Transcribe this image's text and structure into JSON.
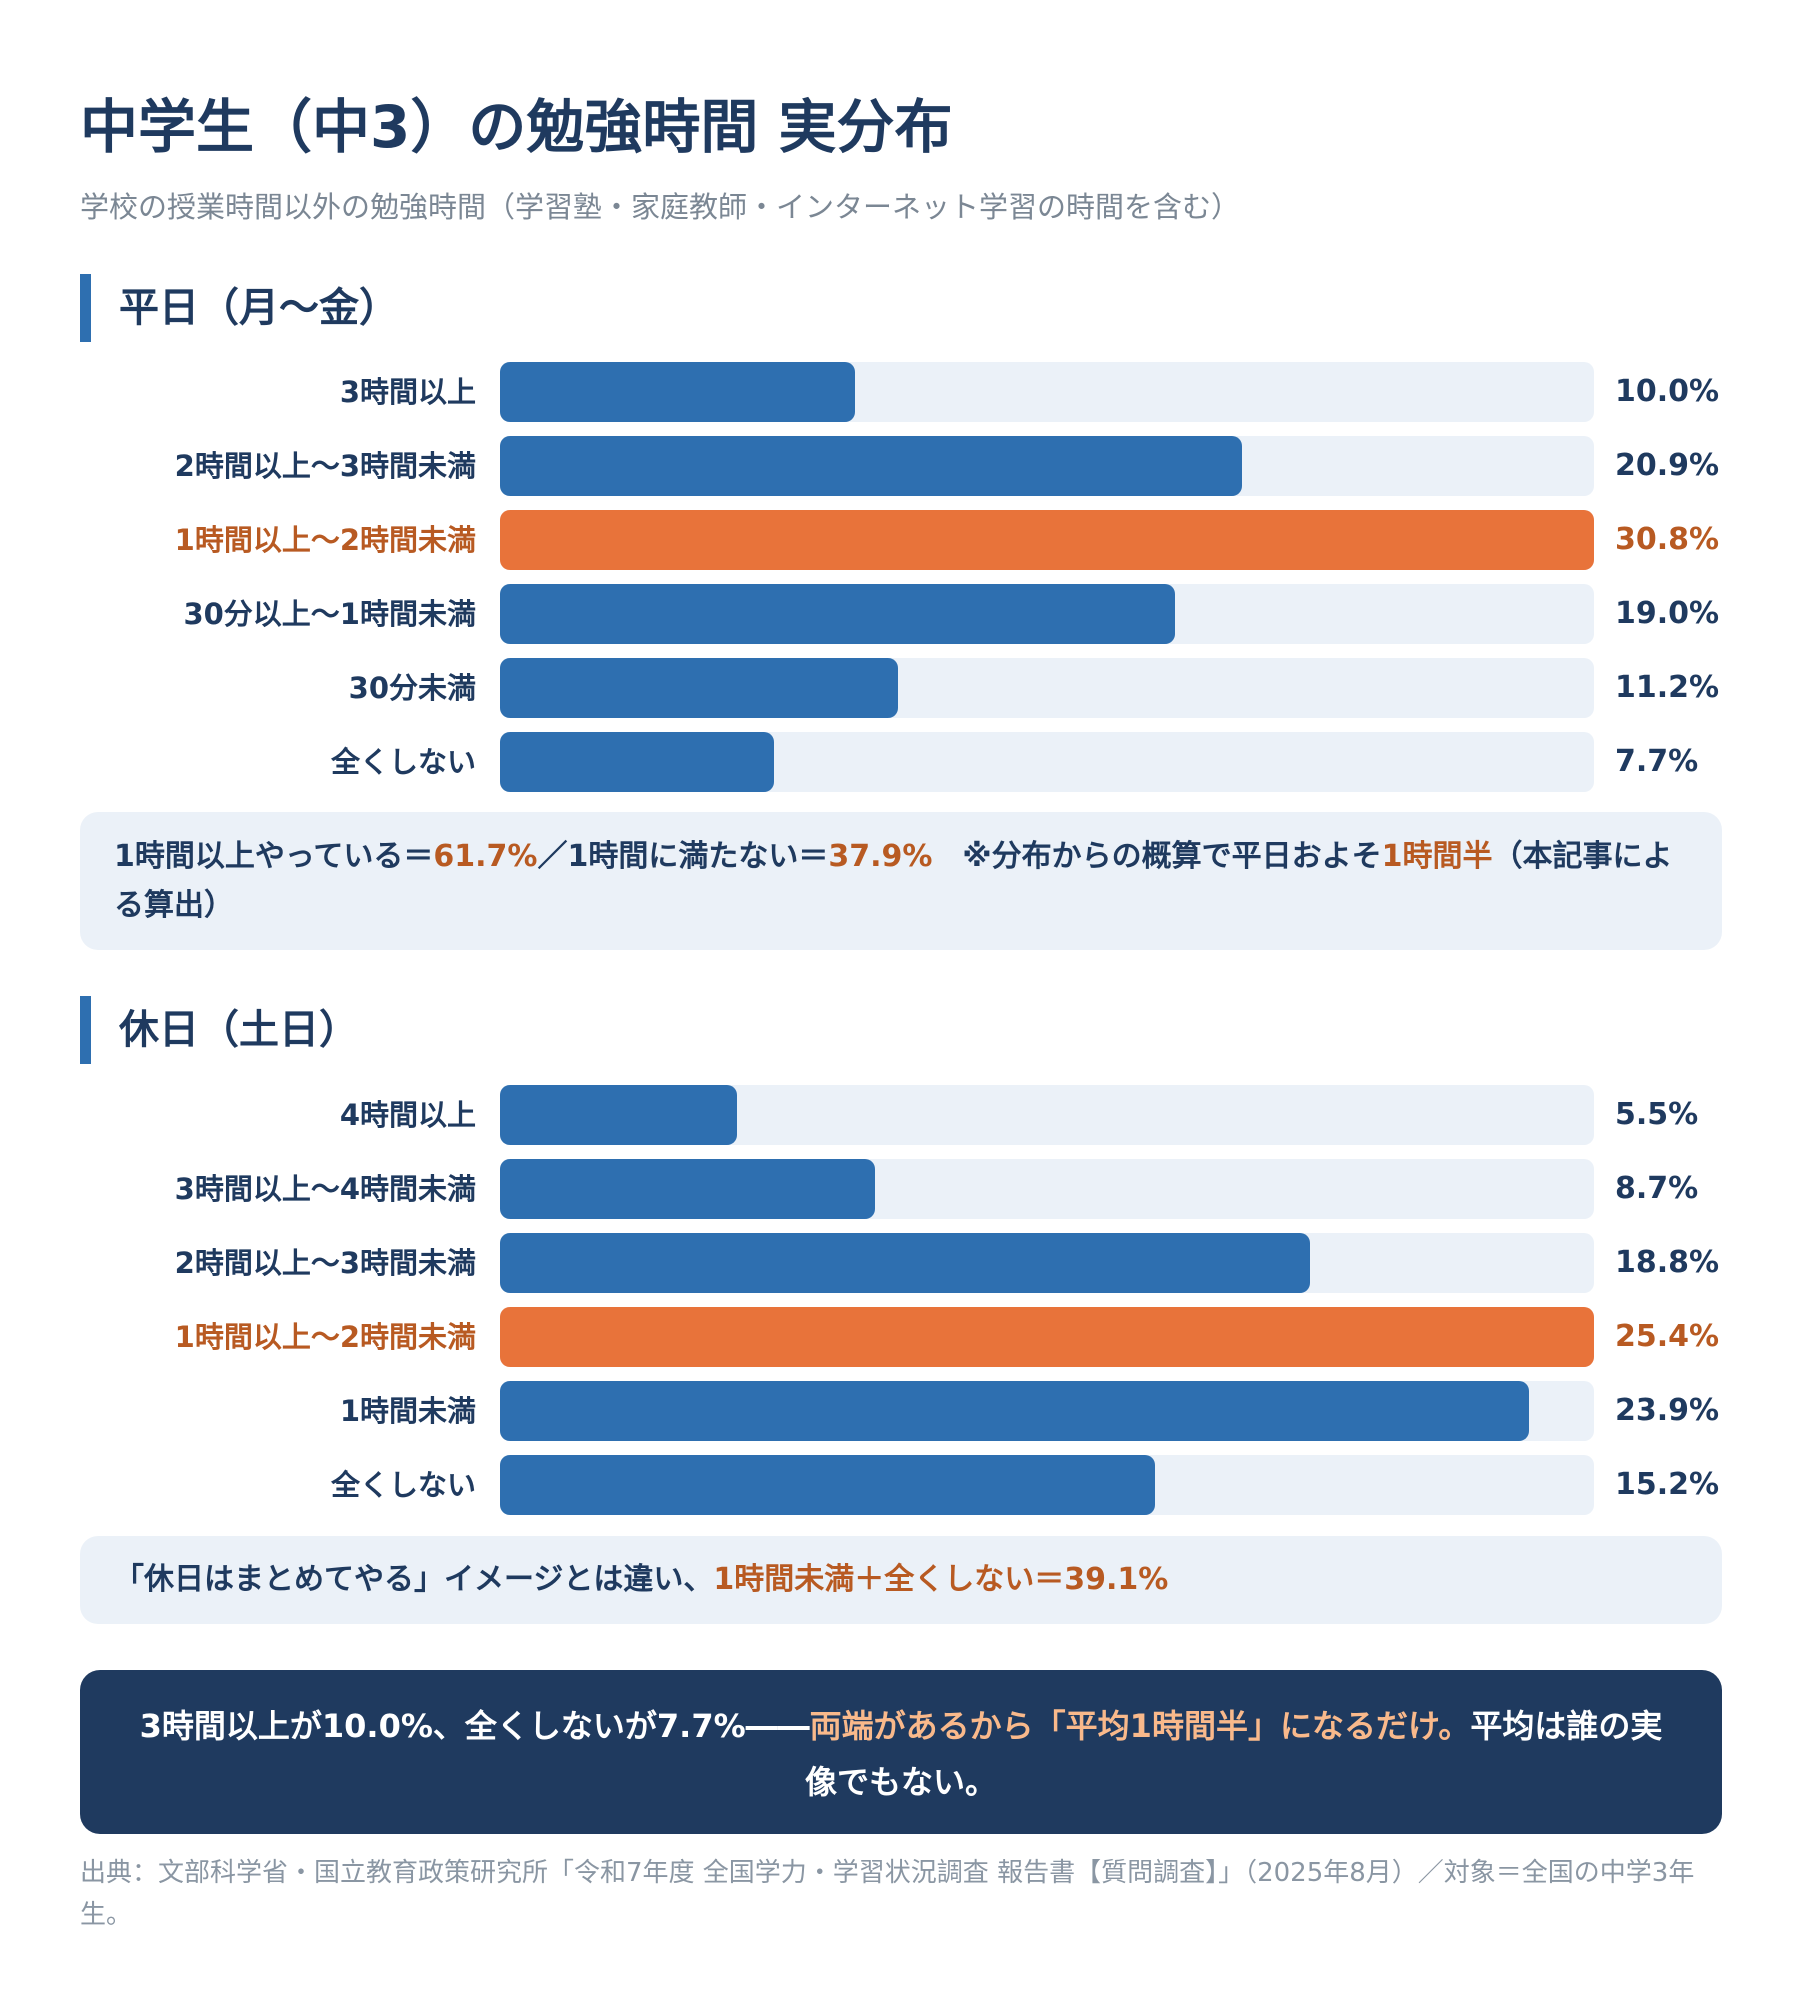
{
  "title": "中学生（中3）の勉強時間 実分布",
  "subtitle": "学校の授業時間以外の勉強時間（学習塾・家庭教師・インターネット学習の時間を含む）",
  "weekday": {
    "heading": "平日（月〜金）",
    "note": {
      "part1": "1時間以上やっている＝",
      "val1": "61.7%",
      "part2": "／1時間に満たない＝",
      "val2": "37.9%",
      "part3": "　※分布からの概算で平日およそ",
      "val3": "1時間半",
      "part4": "（本記事による算出）"
    }
  },
  "holiday": {
    "heading": "休日（土日）",
    "note": {
      "part1": "「休日はまとめてやる」イメージとは違い、",
      "val1": "1時間未満＋全くしない＝39.1%"
    }
  },
  "callout": {
    "part1": "3時間以上が10.0%、全くしないが7.7%――",
    "accent": "両端があるから「平均1時間半」になるだけ。",
    "part2": "平均は誰の実像でもない。"
  },
  "source": "出典：文部科学省・国立教育政策研究所「令和7年度 全国学力・学習状況調査 報告書【質問調査】」（2025年8月）／対象＝全国の中学3年生。",
  "colors": {
    "bar": "#2e6fb0",
    "highlight": "#e8733a",
    "track": "#ebf1f8",
    "navy": "#1f3a5f",
    "accent_text": "#b85a22"
  },
  "chart_data": [
    {
      "type": "bar",
      "orientation": "horizontal",
      "title": "平日（月〜金）",
      "categories": [
        "3時間以上",
        "2時間以上〜3時間未満",
        "1時間以上〜2時間未満",
        "30分以上〜1時間未満",
        "30分未満",
        "全くしない"
      ],
      "values": [
        10.0,
        20.9,
        30.8,
        19.0,
        11.2,
        7.7
      ],
      "value_labels": [
        "10.0%",
        "20.9%",
        "30.8%",
        "19.0%",
        "11.2%",
        "7.7%"
      ],
      "highlight_index": 2,
      "xlim": [
        0,
        30.8
      ]
    },
    {
      "type": "bar",
      "orientation": "horizontal",
      "title": "休日（土日）",
      "categories": [
        "4時間以上",
        "3時間以上〜4時間未満",
        "2時間以上〜3時間未満",
        "1時間以上〜2時間未満",
        "1時間未満",
        "全くしない"
      ],
      "values": [
        5.5,
        8.7,
        18.8,
        25.4,
        23.9,
        15.2
      ],
      "value_labels": [
        "5.5%",
        "8.7%",
        "18.8%",
        "25.4%",
        "23.9%",
        "15.2%"
      ],
      "highlight_index": 3,
      "xlim": [
        0,
        25.4
      ]
    }
  ]
}
